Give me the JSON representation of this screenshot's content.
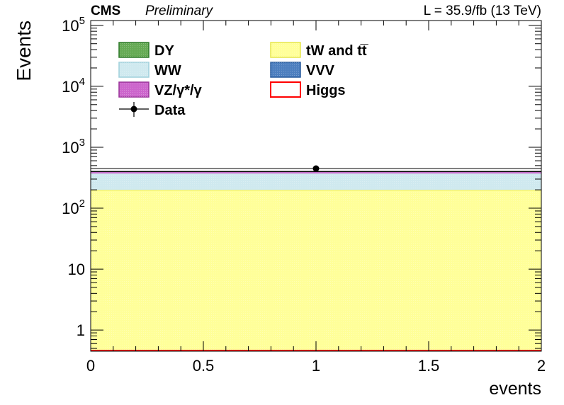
{
  "header": {
    "experiment": "CMS",
    "status": "Preliminary",
    "lumi": "L = 35.9/fb (13 TeV)"
  },
  "chart_data": {
    "type": "bar",
    "stacked": true,
    "xlabel": "events",
    "ylabel": "Events",
    "xlim": [
      0,
      2
    ],
    "ylim": [
      0.45,
      120000
    ],
    "log_y": true,
    "x_ticks": [
      {
        "value": 0,
        "label": "0"
      },
      {
        "value": 0.5,
        "label": "0.5"
      },
      {
        "value": 1,
        "label": "1"
      },
      {
        "value": 1.5,
        "label": "1.5"
      },
      {
        "value": 2,
        "label": "2"
      }
    ],
    "y_ticks": [
      {
        "value": 1,
        "base": "1",
        "exp": ""
      },
      {
        "value": 10,
        "base": "10",
        "exp": ""
      },
      {
        "value": 100,
        "base": "10",
        "exp": "2"
      },
      {
        "value": 1000,
        "base": "10",
        "exp": "3"
      },
      {
        "value": 10000,
        "base": "10",
        "exp": "4"
      },
      {
        "value": 100000,
        "base": "10",
        "exp": "5"
      }
    ],
    "bin": [
      0,
      2
    ],
    "series": [
      {
        "name": "Higgs",
        "value": 0.01,
        "fill": "none",
        "stroke": "#ff0000"
      },
      {
        "name": "tW and t̅t",
        "value": 200,
        "fill": "#ffff99",
        "stroke": "#e6e64c"
      },
      {
        "name": "WW",
        "value": 185,
        "fill": "#cfe9ef",
        "stroke": "#9fd0dc"
      },
      {
        "name": "VVV",
        "value": 3,
        "fill": "#4d7fbf",
        "stroke": "#2a5d9e"
      },
      {
        "name": "VZ/γ*/γ",
        "value": 10,
        "fill": "#cc66cc",
        "stroke": "#993399"
      },
      {
        "name": "DY",
        "value": 2,
        "fill": "#66aa55",
        "stroke": "#2f7a2a"
      }
    ],
    "total": 400,
    "data": {
      "name": "Data",
      "x": 1,
      "y": 447
    },
    "legend": {
      "placement": "top-left",
      "entries": [
        {
          "name": "DY",
          "kind": "fill",
          "color": "#66aa55",
          "stroke": "#2f7a2a"
        },
        {
          "name": "tW and tt̅",
          "kind": "fill",
          "color": "#ffff99",
          "stroke": "#e6e64c"
        },
        {
          "name": "WW",
          "kind": "fill",
          "color": "#cfe9ef",
          "stroke": "#9fd0dc"
        },
        {
          "name": "VVV",
          "kind": "fill",
          "color": "#4d7fbf",
          "stroke": "#2a5d9e"
        },
        {
          "name": "VZ/γ*/γ",
          "kind": "fill",
          "color": "#cc66cc",
          "stroke": "#993399"
        },
        {
          "name": "Higgs",
          "kind": "line",
          "color": "#ffffff",
          "stroke": "#ff0000"
        },
        {
          "name": "Data",
          "kind": "marker",
          "color": "#000000",
          "stroke": "#000000"
        }
      ]
    }
  }
}
